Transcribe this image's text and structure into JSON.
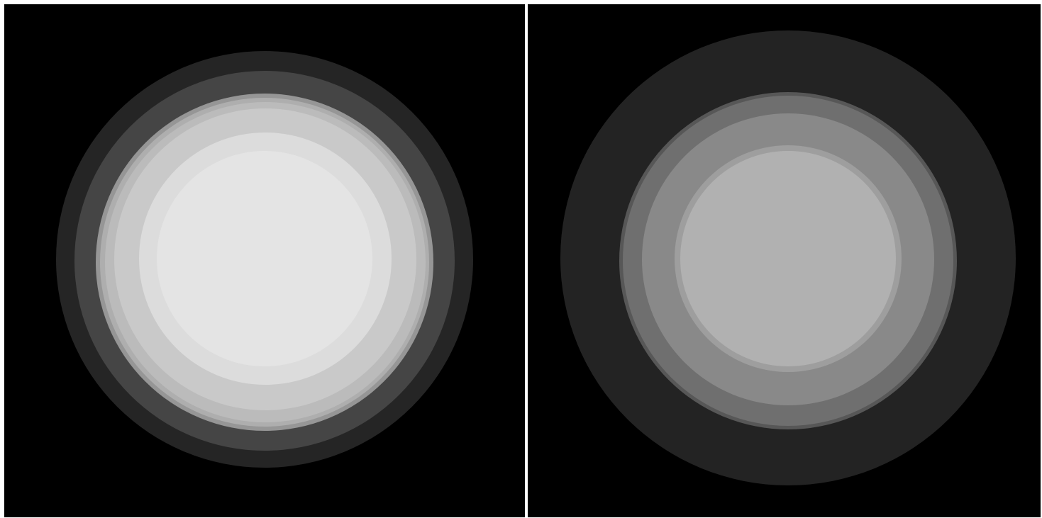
{
  "panels": [
    {
      "name": "left-concentric-circles",
      "ring_colors": [
        "#252525",
        "#454545",
        "#969696",
        "#aeaeae",
        "#bbbbbb",
        "#c9c9c9",
        "#dcdcdc",
        "#e4e4e4"
      ]
    },
    {
      "name": "right-concentric-circles",
      "ring_colors": [
        "#232323",
        "#575757",
        "#6f6f6f",
        "#898989",
        "#9e9e9e",
        "#b1b1b1"
      ]
    }
  ],
  "colors": {
    "background": "#000000",
    "border": "#ffffff"
  }
}
